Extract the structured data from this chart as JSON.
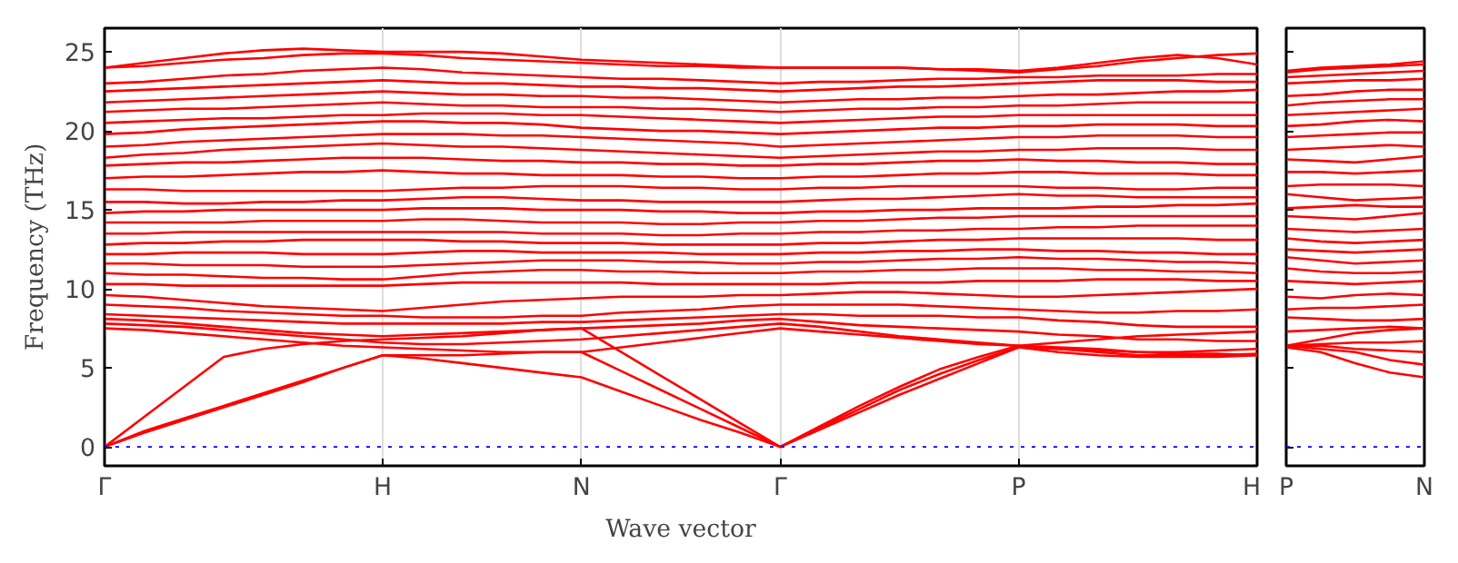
{
  "chart_data": [
    {
      "type": "line",
      "xlabel": "Wave vector",
      "ylabel": "Frequency (THz)",
      "categories": [
        "Γ",
        null,
        null,
        null,
        null,
        null,
        null,
        "H",
        null,
        null,
        null,
        null,
        "N",
        null,
        null,
        null,
        null,
        "Γ",
        null,
        null,
        null,
        null,
        null,
        "P",
        null,
        null,
        null,
        null,
        null,
        "H"
      ],
      "ylim": [
        -1.2,
        26.5
      ],
      "yticks": [
        0,
        5,
        10,
        15,
        20,
        25
      ],
      "grid": "x",
      "marker": "none",
      "line_style": "solid",
      "ref_lines": [
        {
          "axis": "y",
          "value": 0,
          "color": "#0000ff",
          "line_style": "dotted"
        }
      ],
      "series": [
        {
          "color": "#ff0000",
          "values": [
            0,
            0.9,
            1.7,
            2.5,
            3.3,
            4.1,
            5.0,
            5.8,
            5.6,
            5.3,
            5.0,
            4.7,
            4.4,
            3.5,
            2.6,
            1.7,
            0.9,
            0,
            1.1,
            2.2,
            3.3,
            4.3,
            5.3,
            6.3,
            6.0,
            5.8,
            5.7,
            5.7,
            5.7,
            5.8
          ]
        },
        {
          "color": "#ff0000",
          "values": [
            0,
            1.0,
            1.8,
            2.6,
            3.4,
            4.2,
            5.0,
            5.8,
            5.8,
            5.8,
            5.9,
            6.0,
            6.0,
            4.8,
            3.6,
            2.4,
            1.2,
            0,
            1.2,
            2.4,
            3.6,
            4.6,
            5.5,
            6.3,
            6.2,
            6.1,
            6.0,
            5.9,
            5.9,
            5.8
          ]
        },
        {
          "color": "#ff0000",
          "values": [
            0,
            1.9,
            3.8,
            5.7,
            6.2,
            6.5,
            6.7,
            6.8,
            6.9,
            7.0,
            7.2,
            7.4,
            7.5,
            6.0,
            4.5,
            3.0,
            1.5,
            0,
            1.3,
            2.6,
            3.8,
            4.9,
            5.7,
            6.4,
            6.6,
            6.8,
            7.0,
            7.1,
            7.2,
            7.3
          ]
        },
        {
          "color": "#ff0000",
          "values": [
            7.5,
            7.4,
            7.2,
            7.0,
            6.8,
            6.6,
            6.4,
            6.3,
            6.2,
            6.1,
            6.0,
            6.0,
            6.0,
            6.3,
            6.6,
            6.9,
            7.2,
            7.5,
            7.3,
            7.1,
            6.9,
            6.7,
            6.5,
            6.4,
            6.2,
            6.0,
            5.8,
            5.8,
            5.8,
            5.9
          ]
        },
        {
          "color": "#ff0000",
          "values": [
            7.8,
            7.7,
            7.6,
            7.4,
            7.2,
            7.0,
            6.8,
            6.6,
            6.5,
            6.5,
            6.6,
            6.7,
            6.8,
            7.0,
            7.2,
            7.4,
            7.6,
            7.8,
            7.6,
            7.3,
            7.0,
            6.8,
            6.6,
            6.4,
            6.3,
            6.2,
            6.0,
            6.0,
            6.1,
            6.2
          ]
        },
        {
          "color": "#ff0000",
          "values": [
            8.1,
            8.0,
            7.8,
            7.6,
            7.4,
            7.2,
            7.1,
            7.0,
            7.1,
            7.2,
            7.3,
            7.4,
            7.5,
            7.6,
            7.7,
            7.8,
            8.0,
            8.1,
            7.9,
            7.7,
            7.6,
            7.5,
            7.4,
            7.3,
            7.1,
            7.0,
            6.8,
            6.8,
            6.7,
            6.7
          ]
        },
        {
          "color": "#ff0000",
          "values": [
            8.4,
            8.3,
            8.2,
            8.1,
            8.0,
            7.9,
            7.8,
            7.8,
            7.8,
            7.8,
            7.8,
            7.9,
            7.9,
            8.0,
            8.1,
            8.2,
            8.3,
            8.4,
            8.4,
            8.3,
            8.3,
            8.3,
            8.2,
            8.2,
            8.0,
            7.9,
            7.7,
            7.6,
            7.6,
            7.6
          ]
        },
        {
          "color": "#ff0000",
          "values": [
            9.0,
            8.9,
            8.8,
            8.6,
            8.5,
            8.4,
            8.3,
            8.3,
            8.2,
            8.2,
            8.2,
            8.3,
            8.3,
            8.5,
            8.6,
            8.7,
            8.9,
            9.0,
            9.0,
            9.0,
            9.0,
            8.9,
            8.8,
            8.7,
            8.6,
            8.5,
            8.5,
            8.6,
            8.6,
            8.7
          ]
        },
        {
          "color": "#ff0000",
          "values": [
            9.6,
            9.5,
            9.3,
            9.1,
            8.9,
            8.8,
            8.7,
            8.6,
            8.8,
            9.0,
            9.2,
            9.3,
            9.4,
            9.5,
            9.5,
            9.5,
            9.6,
            9.6,
            9.7,
            9.8,
            9.8,
            9.7,
            9.6,
            9.5,
            9.5,
            9.6,
            9.7,
            9.8,
            9.9,
            10.0
          ]
        },
        {
          "color": "#ff0000",
          "values": [
            10.3,
            10.3,
            10.2,
            10.2,
            10.2,
            10.2,
            10.2,
            10.2,
            10.3,
            10.4,
            10.4,
            10.4,
            10.4,
            10.4,
            10.3,
            10.3,
            10.3,
            10.3,
            10.3,
            10.4,
            10.4,
            10.4,
            10.5,
            10.5,
            10.5,
            10.6,
            10.6,
            10.6,
            10.5,
            10.5
          ]
        },
        {
          "color": "#ff0000",
          "values": [
            11.0,
            10.9,
            10.9,
            10.8,
            10.7,
            10.7,
            10.6,
            10.6,
            10.8,
            11.0,
            11.1,
            11.2,
            11.2,
            11.1,
            11.1,
            11.0,
            11.0,
            11.0,
            11.1,
            11.1,
            11.2,
            11.2,
            11.3,
            11.3,
            11.3,
            11.2,
            11.2,
            11.1,
            11.1,
            11.0
          ]
        },
        {
          "color": "#ff0000",
          "values": [
            11.6,
            11.6,
            11.5,
            11.5,
            11.5,
            11.4,
            11.4,
            11.4,
            11.5,
            11.6,
            11.7,
            11.8,
            11.8,
            11.8,
            11.7,
            11.7,
            11.6,
            11.6,
            11.7,
            11.7,
            11.8,
            11.9,
            11.9,
            12.0,
            11.9,
            11.9,
            11.8,
            11.7,
            11.7,
            11.6
          ]
        },
        {
          "color": "#ff0000",
          "values": [
            12.2,
            12.2,
            12.3,
            12.3,
            12.3,
            12.2,
            12.2,
            12.2,
            12.3,
            12.4,
            12.4,
            12.3,
            12.3,
            12.3,
            12.3,
            12.2,
            12.2,
            12.2,
            12.3,
            12.3,
            12.4,
            12.4,
            12.5,
            12.5,
            12.4,
            12.4,
            12.3,
            12.3,
            12.2,
            12.2
          ]
        },
        {
          "color": "#ff0000",
          "values": [
            12.8,
            12.9,
            12.9,
            13.0,
            13.0,
            13.1,
            13.1,
            13.1,
            13.1,
            13.0,
            13.0,
            12.9,
            12.9,
            12.9,
            12.8,
            12.8,
            12.8,
            12.8,
            12.9,
            12.9,
            13.0,
            13.1,
            13.1,
            13.2,
            13.2,
            13.2,
            13.2,
            13.2,
            13.1,
            13.1
          ]
        },
        {
          "color": "#ff0000",
          "values": [
            13.5,
            13.5,
            13.6,
            13.6,
            13.6,
            13.6,
            13.6,
            13.6,
            13.6,
            13.6,
            13.6,
            13.5,
            13.5,
            13.5,
            13.4,
            13.4,
            13.5,
            13.5,
            13.6,
            13.6,
            13.7,
            13.7,
            13.8,
            13.8,
            13.9,
            13.9,
            14.0,
            14.0,
            14.0,
            14.0
          ]
        },
        {
          "color": "#ff0000",
          "values": [
            14.2,
            14.2,
            14.2,
            14.2,
            14.3,
            14.3,
            14.3,
            14.3,
            14.4,
            14.4,
            14.3,
            14.2,
            14.2,
            14.2,
            14.1,
            14.1,
            14.2,
            14.2,
            14.3,
            14.3,
            14.4,
            14.5,
            14.5,
            14.6,
            14.6,
            14.6,
            14.6,
            14.6,
            14.6,
            14.6
          ]
        },
        {
          "color": "#ff0000",
          "values": [
            14.8,
            14.9,
            14.9,
            15.0,
            15.0,
            15.0,
            15.0,
            15.0,
            15.1,
            15.1,
            15.1,
            15.0,
            15.0,
            15.0,
            14.9,
            14.9,
            14.8,
            14.8,
            14.9,
            14.9,
            15.0,
            15.0,
            15.1,
            15.1,
            15.1,
            15.2,
            15.2,
            15.3,
            15.3,
            15.4
          ]
        },
        {
          "color": "#ff0000",
          "values": [
            15.5,
            15.5,
            15.4,
            15.4,
            15.5,
            15.5,
            15.6,
            15.6,
            15.7,
            15.8,
            15.8,
            15.7,
            15.6,
            15.6,
            15.5,
            15.5,
            15.5,
            15.5,
            15.6,
            15.7,
            15.7,
            15.8,
            15.9,
            16.0,
            15.9,
            15.9,
            15.8,
            15.8,
            15.8,
            15.8
          ]
        },
        {
          "color": "#ff0000",
          "values": [
            16.3,
            16.3,
            16.2,
            16.2,
            16.2,
            16.2,
            16.2,
            16.2,
            16.3,
            16.4,
            16.4,
            16.5,
            16.5,
            16.5,
            16.4,
            16.4,
            16.3,
            16.3,
            16.4,
            16.4,
            16.5,
            16.5,
            16.5,
            16.5,
            16.4,
            16.4,
            16.3,
            16.3,
            16.4,
            16.4
          ]
        },
        {
          "color": "#ff0000",
          "values": [
            17.0,
            17.1,
            17.1,
            17.2,
            17.3,
            17.4,
            17.4,
            17.5,
            17.4,
            17.3,
            17.3,
            17.2,
            17.2,
            17.2,
            17.1,
            17.1,
            17.0,
            17.0,
            17.1,
            17.1,
            17.2,
            17.3,
            17.3,
            17.4,
            17.4,
            17.3,
            17.3,
            17.3,
            17.2,
            17.2
          ]
        },
        {
          "color": "#ff0000",
          "values": [
            17.8,
            17.9,
            18.0,
            18.0,
            18.1,
            18.2,
            18.3,
            18.3,
            18.3,
            18.2,
            18.1,
            18.1,
            18.0,
            18.0,
            17.9,
            17.9,
            17.8,
            17.8,
            17.9,
            17.9,
            18.0,
            18.1,
            18.1,
            18.2,
            18.1,
            18.1,
            18.0,
            18.0,
            17.9,
            17.9
          ]
        },
        {
          "color": "#ff0000",
          "values": [
            18.3,
            18.5,
            18.6,
            18.8,
            18.9,
            19.0,
            19.1,
            19.2,
            19.1,
            19.0,
            19.0,
            18.9,
            18.8,
            18.7,
            18.6,
            18.5,
            18.4,
            18.3,
            18.4,
            18.5,
            18.6,
            18.7,
            18.7,
            18.8,
            18.8,
            18.9,
            18.9,
            18.9,
            18.8,
            18.8
          ]
        },
        {
          "color": "#ff0000",
          "values": [
            19.0,
            19.1,
            19.3,
            19.4,
            19.5,
            19.6,
            19.7,
            19.8,
            19.8,
            19.8,
            19.7,
            19.7,
            19.6,
            19.5,
            19.4,
            19.3,
            19.2,
            19.0,
            19.1,
            19.2,
            19.3,
            19.4,
            19.5,
            19.6,
            19.6,
            19.7,
            19.7,
            19.7,
            19.6,
            19.6
          ]
        },
        {
          "color": "#ff0000",
          "values": [
            19.8,
            19.9,
            20.1,
            20.2,
            20.3,
            20.4,
            20.5,
            20.6,
            20.6,
            20.5,
            20.5,
            20.4,
            20.2,
            20.1,
            20.0,
            20.0,
            19.9,
            19.8,
            19.9,
            20.0,
            20.1,
            20.2,
            20.2,
            20.3,
            20.3,
            20.4,
            20.4,
            20.4,
            20.3,
            20.3
          ]
        },
        {
          "color": "#ff0000",
          "values": [
            20.5,
            20.6,
            20.7,
            20.8,
            20.8,
            20.9,
            21.0,
            21.0,
            21.1,
            21.1,
            21.1,
            21.0,
            21.0,
            20.9,
            20.8,
            20.7,
            20.6,
            20.5,
            20.6,
            20.7,
            20.8,
            20.9,
            20.9,
            21.0,
            21.0,
            21.0,
            21.0,
            21.0,
            21.0,
            21.0
          ]
        },
        {
          "color": "#ff0000",
          "values": [
            21.2,
            21.3,
            21.4,
            21.4,
            21.5,
            21.6,
            21.7,
            21.8,
            21.7,
            21.6,
            21.6,
            21.5,
            21.5,
            21.5,
            21.4,
            21.4,
            21.3,
            21.2,
            21.3,
            21.4,
            21.4,
            21.5,
            21.5,
            21.6,
            21.6,
            21.7,
            21.8,
            21.8,
            21.8,
            21.8
          ]
        },
        {
          "color": "#ff0000",
          "values": [
            21.8,
            21.9,
            22.0,
            22.1,
            22.2,
            22.3,
            22.4,
            22.5,
            22.4,
            22.3,
            22.3,
            22.2,
            22.2,
            22.1,
            22.1,
            22.0,
            21.9,
            21.8,
            21.9,
            22.0,
            22.0,
            22.1,
            22.1,
            22.2,
            22.3,
            22.3,
            22.4,
            22.5,
            22.5,
            22.6
          ]
        },
        {
          "color": "#ff0000",
          "values": [
            22.5,
            22.6,
            22.7,
            22.8,
            22.9,
            23.0,
            23.1,
            23.2,
            23.1,
            23.0,
            23.0,
            22.9,
            22.8,
            22.8,
            22.7,
            22.7,
            22.6,
            22.5,
            22.6,
            22.7,
            22.8,
            22.8,
            22.9,
            23.0,
            23.1,
            23.2,
            23.2,
            23.2,
            23.1,
            23.1
          ]
        },
        {
          "color": "#ff0000",
          "values": [
            23.0,
            23.1,
            23.3,
            23.5,
            23.6,
            23.8,
            23.9,
            24.0,
            23.9,
            23.7,
            23.6,
            23.5,
            23.4,
            23.3,
            23.3,
            23.2,
            23.1,
            23.0,
            23.1,
            23.1,
            23.2,
            23.3,
            23.3,
            23.4,
            23.4,
            23.5,
            23.5,
            23.5,
            23.6,
            23.6
          ]
        },
        {
          "color": "#ff0000",
          "values": [
            24.0,
            24.1,
            24.3,
            24.5,
            24.6,
            24.8,
            24.9,
            24.9,
            24.8,
            24.6,
            24.5,
            24.4,
            24.3,
            24.2,
            24.1,
            24.1,
            24.0,
            24.0,
            24.0,
            24.0,
            24.0,
            23.9,
            23.8,
            23.7,
            23.9,
            24.1,
            24.4,
            24.6,
            24.8,
            24.9
          ]
        },
        {
          "color": "#ff0000",
          "values": [
            24.0,
            24.3,
            24.6,
            24.9,
            25.1,
            25.2,
            25.1,
            25.0,
            25.0,
            25.0,
            24.9,
            24.7,
            24.5,
            24.4,
            24.3,
            24.2,
            24.1,
            24.0,
            24.0,
            24.0,
            24.0,
            23.9,
            23.9,
            23.8,
            24.0,
            24.3,
            24.6,
            24.8,
            24.6,
            24.2
          ]
        }
      ]
    },
    {
      "type": "line",
      "categories": [
        "P",
        null,
        null,
        null,
        "N"
      ],
      "ylim": [
        -1.2,
        26.5
      ],
      "yticks": [
        0,
        5,
        10,
        15,
        20,
        25
      ],
      "tick_labels": "x",
      "marker": "none",
      "line_style": "solid",
      "ref_lines": [
        {
          "axis": "y",
          "value": 0,
          "color": "#0000ff",
          "line_style": "dotted"
        }
      ],
      "series": [
        {
          "color": "#ff0000",
          "values": [
            6.3,
            6,
            5.3,
            4.7,
            4.4
          ]
        },
        {
          "color": "#ff0000",
          "values": [
            6.3,
            6.4,
            6.2,
            6.1,
            6.0
          ]
        },
        {
          "color": "#ff0000",
          "values": [
            6.4,
            6.8,
            7.2,
            7.4,
            7.5
          ]
        },
        {
          "color": "#ff0000",
          "values": [
            6.4,
            6.2,
            6,
            5.5,
            5.2
          ]
        },
        {
          "color": "#ff0000",
          "values": [
            6.4,
            6.5,
            6.6,
            6.6,
            6.7
          ]
        },
        {
          "color": "#ff0000",
          "values": [
            7.3,
            7.4,
            7.5,
            7.6,
            7.5
          ]
        },
        {
          "color": "#ff0000",
          "values": [
            8.2,
            8.1,
            8,
            8,
            8.1
          ]
        },
        {
          "color": "#ff0000",
          "values": [
            8.7,
            8.8,
            8.8,
            8.9,
            9
          ]
        },
        {
          "color": "#ff0000",
          "values": [
            9.5,
            9.4,
            9.6,
            9.7,
            9.6
          ]
        },
        {
          "color": "#ff0000",
          "values": [
            10.5,
            10.4,
            10.3,
            10.4,
            10.5
          ]
        },
        {
          "color": "#ff0000",
          "values": [
            11.3,
            11.1,
            11,
            11,
            11.1
          ]
        },
        {
          "color": "#ff0000",
          "values": [
            12,
            11.8,
            11.6,
            11.7,
            11.8
          ]
        },
        {
          "color": "#ff0000",
          "values": [
            12.5,
            12.4,
            12.3,
            12.4,
            12.5
          ]
        },
        {
          "color": "#ff0000",
          "values": [
            13.2,
            13,
            12.9,
            13,
            13.1
          ]
        },
        {
          "color": "#ff0000",
          "values": [
            13.8,
            13.7,
            13.6,
            13.7,
            13.8
          ]
        },
        {
          "color": "#ff0000",
          "values": [
            14.6,
            14.5,
            14.4,
            14.6,
            14.8
          ]
        },
        {
          "color": "#ff0000",
          "values": [
            15.1,
            15.2,
            15.3,
            15.2,
            15.2
          ]
        },
        {
          "color": "#ff0000",
          "values": [
            16,
            15.8,
            15.6,
            15.7,
            15.8
          ]
        },
        {
          "color": "#ff0000",
          "values": [
            16.5,
            16.6,
            16.6,
            16.6,
            16.5
          ]
        },
        {
          "color": "#ff0000",
          "values": [
            17.4,
            17.4,
            17.3,
            17.4,
            17.5
          ]
        },
        {
          "color": "#ff0000",
          "values": [
            18.2,
            18.1,
            18,
            18.2,
            18.4
          ]
        },
        {
          "color": "#ff0000",
          "values": [
            18.8,
            18.9,
            19,
            19.1,
            19
          ]
        },
        {
          "color": "#ff0000",
          "values": [
            19.6,
            19.7,
            19.8,
            19.9,
            19.9
          ]
        },
        {
          "color": "#ff0000",
          "values": [
            20.3,
            20.4,
            20.6,
            20.7,
            20.6
          ]
        },
        {
          "color": "#ff0000",
          "values": [
            21,
            21.1,
            21.2,
            21.3,
            21.4
          ]
        },
        {
          "color": "#ff0000",
          "values": [
            21.6,
            21.8,
            21.9,
            22,
            22
          ]
        },
        {
          "color": "#ff0000",
          "values": [
            22.2,
            22.3,
            22.5,
            22.6,
            22.6
          ]
        },
        {
          "color": "#ff0000",
          "values": [
            23,
            23.1,
            23.2,
            23.2,
            23.3
          ]
        },
        {
          "color": "#ff0000",
          "values": [
            23.4,
            23.5,
            23.6,
            23.7,
            23.8
          ]
        },
        {
          "color": "#ff0000",
          "values": [
            23.7,
            23.9,
            24,
            24.1,
            24.2
          ]
        },
        {
          "color": "#ff0000",
          "values": [
            23.8,
            24,
            24.1,
            24.2,
            24.4
          ]
        }
      ]
    }
  ]
}
